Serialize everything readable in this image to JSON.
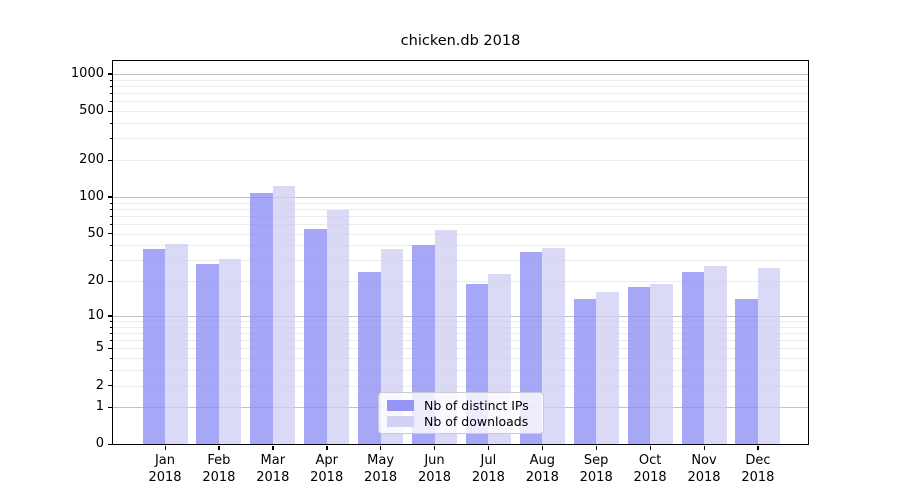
{
  "chart_data": {
    "type": "bar",
    "title": "chicken.db 2018",
    "categories": [
      "Jan 2018",
      "Feb 2018",
      "Mar 2018",
      "Apr 2018",
      "May 2018",
      "Jun 2018",
      "Jul 2018",
      "Aug 2018",
      "Sep 2018",
      "Oct 2018",
      "Nov 2018",
      "Dec 2018"
    ],
    "series": [
      {
        "name": "Nb of distinct IPs",
        "color": "#8a8af4",
        "values": [
          37,
          28,
          107,
          55,
          24,
          40,
          19,
          35,
          14,
          18,
          24,
          14
        ]
      },
      {
        "name": "Nb of downloads",
        "color": "#cdcdf4",
        "values": [
          41,
          31,
          122,
          78,
          37,
          54,
          23,
          38,
          16,
          19,
          27,
          26
        ]
      }
    ],
    "xlabel": "",
    "ylabel": "",
    "yscale": "log1p",
    "ylim": [
      0,
      1300
    ],
    "yticks": [
      0,
      1,
      2,
      5,
      10,
      20,
      50,
      100,
      200,
      500,
      1000
    ],
    "grid": true,
    "grid_major_color": "#c3c3c3",
    "grid_minor_color": "#ececec",
    "legend_position": "lower center"
  }
}
